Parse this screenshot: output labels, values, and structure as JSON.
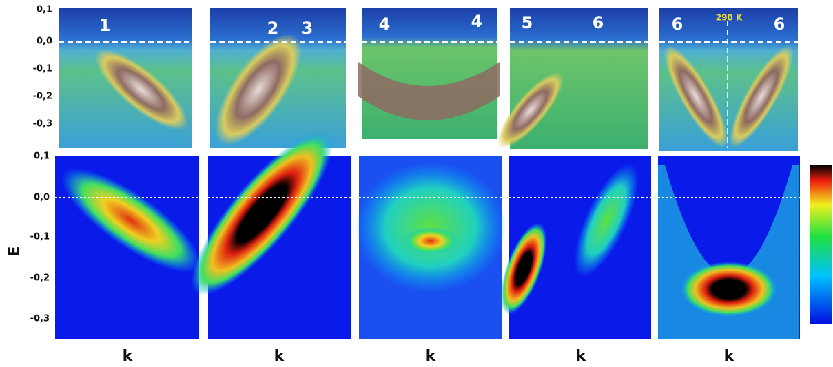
{
  "top_row": {
    "yticks": [
      "0,1",
      "0,0",
      "-0,1",
      "-0,2",
      "-0,3"
    ],
    "panels": [
      {
        "labels": [
          "1"
        ]
      },
      {
        "labels": [
          "2",
          "3"
        ]
      },
      {
        "labels": [
          "4",
          "4"
        ]
      },
      {
        "labels": [
          "5",
          "6"
        ]
      },
      {
        "labels": [
          "6",
          "6"
        ],
        "annotation": "290 K"
      }
    ]
  },
  "bottom_row": {
    "yticks": [
      "0,1",
      "0,0",
      "-0,1",
      "-0,2",
      "-0,3"
    ],
    "ylabel": "E",
    "xlabels": [
      "k",
      "k",
      "k",
      "k",
      "k"
    ]
  }
}
